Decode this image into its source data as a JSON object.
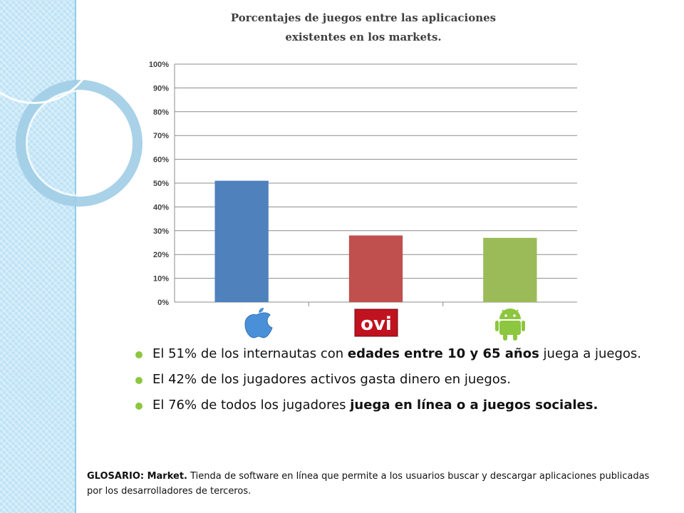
{
  "chart_data": {
    "type": "bar",
    "title_lines": [
      "Porcentajes de juegos entre las aplicaciones",
      "existentes en los markets."
    ],
    "categories": [
      "apple",
      "ovi",
      "android"
    ],
    "values": [
      51,
      28,
      27
    ],
    "value_unit": "%",
    "colors": [
      "#4f81bd",
      "#c0504d",
      "#9bbb59"
    ],
    "ylim": [
      0,
      100
    ],
    "y_ticks": [
      "0%",
      "10%",
      "20%",
      "30%",
      "40%",
      "50%",
      "60%",
      "70%",
      "80%",
      "90%",
      "100%"
    ],
    "grid": true,
    "category_icons": [
      "apple-logo-icon",
      "ovi-logo-icon",
      "android-logo-icon"
    ],
    "ovi_logo_text": "ovi"
  },
  "bullets": [
    {
      "pre": "El 51% de los internautas con ",
      "bold": "edades entre 10 y 65 años",
      "post": " juega a juegos."
    },
    {
      "pre": "El 42% de los jugadores activos gasta dinero en juegos.",
      "bold": "",
      "post": ""
    },
    {
      "pre": "El 76% de todos los jugadores ",
      "bold": "juega en línea o a juegos sociales.",
      "post": ""
    }
  ],
  "glossary": {
    "label": "GLOSARIO: Market.",
    "text": " Tienda de software en línea que permite a los usuarios buscar y descargar aplicaciones publicadas por los desarrolladores de terceros."
  },
  "colors": {
    "bullet": "#8dc63f",
    "side_band": "#bfe3f6"
  }
}
